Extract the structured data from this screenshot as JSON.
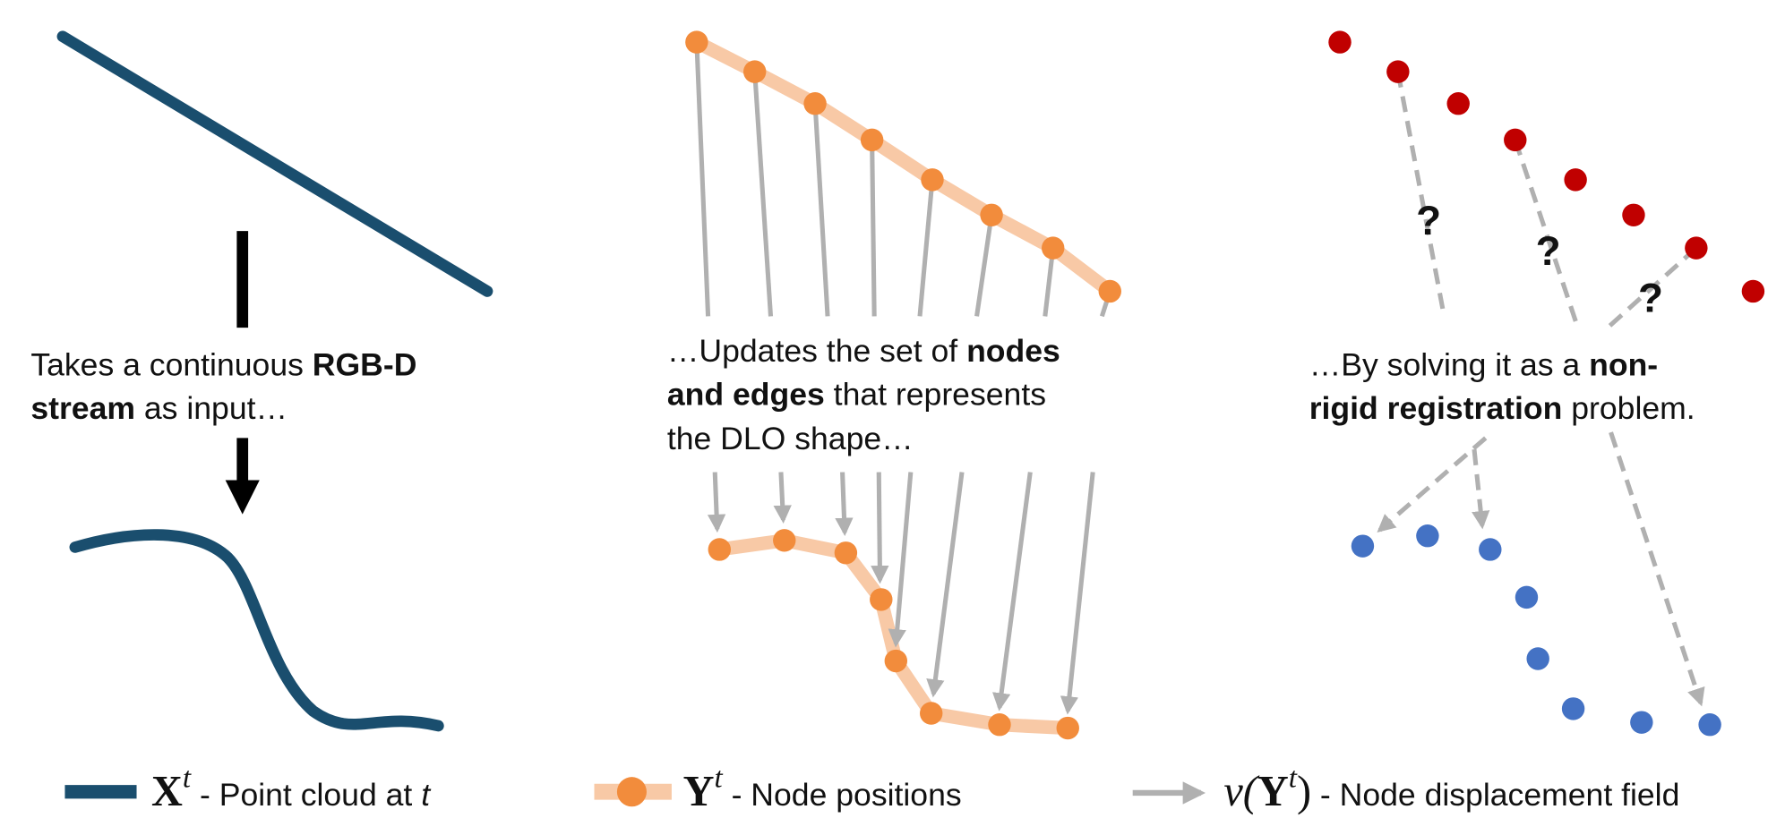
{
  "panels": [
    {
      "caption": {
        "lines": [
          [
            "Takes a continuous ",
            "RGB-D"
          ],
          [
            "stream",
            " as input…"
          ]
        ]
      }
    },
    {
      "caption": {
        "lines": [
          [
            "…Updates the set of ",
            "nodes"
          ],
          [
            "and edges",
            " that represents"
          ],
          [
            "the DLO shape…"
          ]
        ]
      }
    },
    {
      "caption": {
        "lines": [
          [
            "…By solving it as a ",
            "non-"
          ],
          [
            "rigid registration",
            " problem."
          ]
        ]
      },
      "unknowns": [
        "?",
        "?",
        "?"
      ]
    }
  ],
  "legend": [
    {
      "symbol": "X",
      "superscript": "t",
      "text": " - Point cloud at ",
      "italic": "t"
    },
    {
      "symbol": "Y",
      "superscript": "t",
      "text": " - Node positions"
    },
    {
      "prefix": "v(",
      "symbol": "Y",
      "superscript": "t",
      "suffix": ")",
      "text": " - Node displacement field"
    }
  ]
}
